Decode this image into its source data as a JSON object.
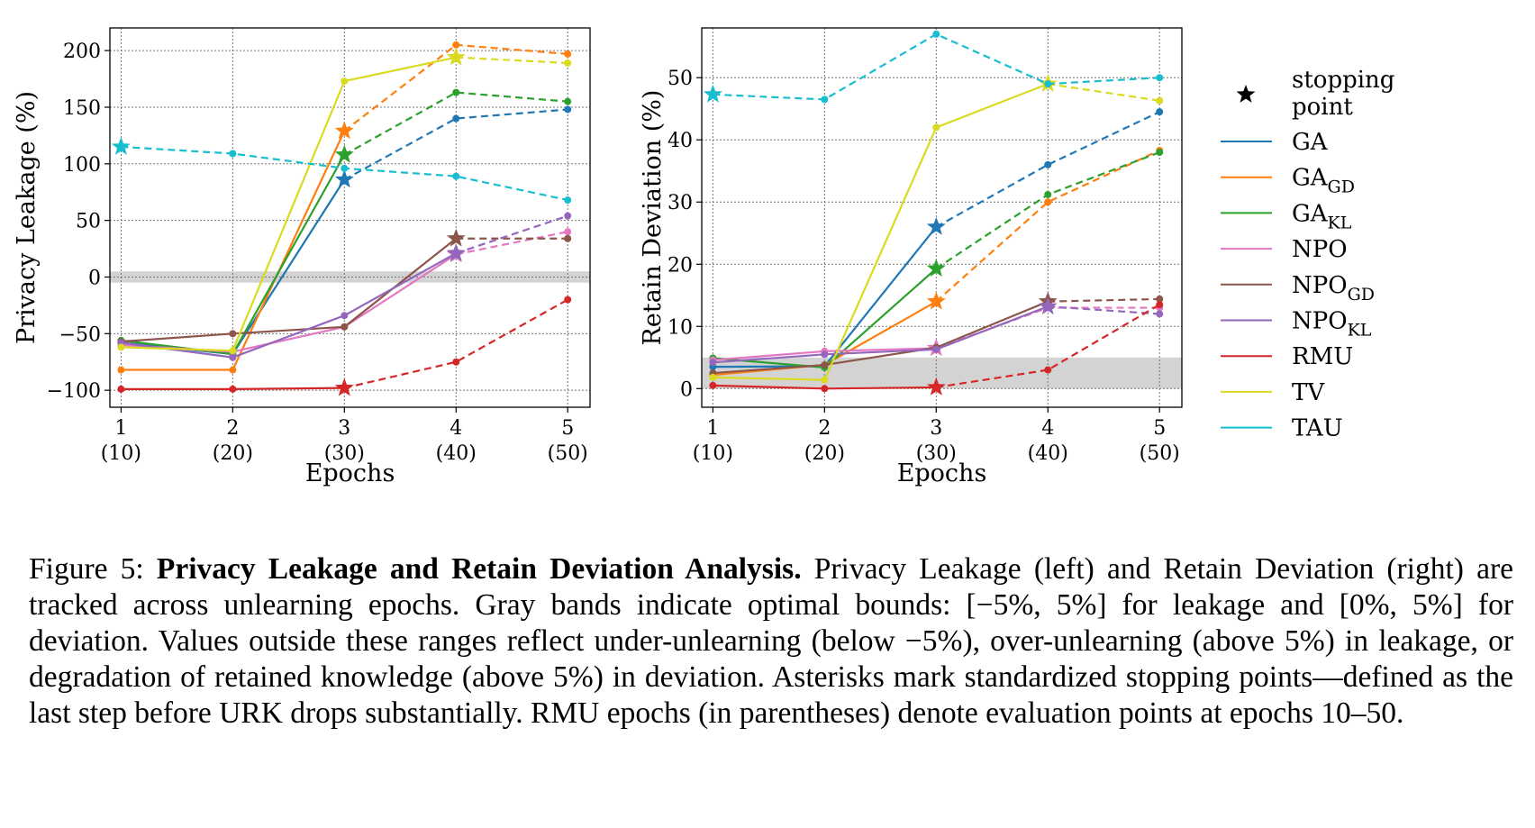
{
  "chart_data": [
    {
      "type": "line",
      "ylabel": "Privacy Leakage (%)",
      "xlabel": "Epochs",
      "x": [
        1,
        2,
        3,
        4,
        5
      ],
      "x_tick_labels": [
        "1",
        "2",
        "3",
        "4",
        "5"
      ],
      "x_tick_sublabels": [
        "(10)",
        "(20)",
        "(30)",
        "(40)",
        "(50)"
      ],
      "xlim": [
        0.9,
        5.2
      ],
      "ylim": [
        -115,
        220
      ],
      "y_ticks": [
        -100,
        -50,
        0,
        50,
        100,
        150,
        200
      ],
      "y_tick_labels": [
        "−100",
        "−50",
        "0",
        "50",
        "100",
        "150",
        "200"
      ],
      "band": [
        -5,
        5
      ],
      "grid": true,
      "series": [
        {
          "name": "GA",
          "color": "#1f77b4",
          "values": [
            -58,
            -68,
            86,
            140,
            148
          ],
          "stop": 3
        },
        {
          "name": "GA_GD",
          "color": "#ff7f0e",
          "values": [
            -82,
            -82,
            129,
            205,
            197
          ],
          "stop": 3
        },
        {
          "name": "GA_KL",
          "color": "#2ca02c",
          "values": [
            -56,
            -68,
            108,
            163,
            155
          ],
          "stop": 3
        },
        {
          "name": "NPO",
          "color": "#e377c2",
          "values": [
            -60,
            -66,
            -44,
            20,
            40
          ],
          "stop": 4
        },
        {
          "name": "NPO_GD",
          "color": "#8c564b",
          "values": [
            -57,
            -50,
            -44,
            34,
            34
          ],
          "stop": 4
        },
        {
          "name": "NPO_KL",
          "color": "#9467bd",
          "values": [
            -58,
            -71,
            -34,
            21,
            54
          ],
          "stop": 4
        },
        {
          "name": "RMU",
          "color": "#d62728",
          "values": [
            -99,
            -99,
            -98,
            -75,
            -20
          ],
          "stop": 3
        },
        {
          "name": "TV",
          "color": "#dada20",
          "values": [
            -62,
            -65,
            173,
            194,
            189
          ],
          "stop": 4
        },
        {
          "name": "TAU",
          "color": "#17becf",
          "values": [
            115,
            109,
            96,
            89,
            68
          ],
          "stop": 1
        }
      ]
    },
    {
      "type": "line",
      "ylabel": "Retain Deviation (%)",
      "xlabel": "Epochs",
      "x": [
        1,
        2,
        3,
        4,
        5
      ],
      "x_tick_labels": [
        "1",
        "2",
        "3",
        "4",
        "5"
      ],
      "x_tick_sublabels": [
        "(10)",
        "(20)",
        "(30)",
        "(40)",
        "(50)"
      ],
      "xlim": [
        0.9,
        5.2
      ],
      "ylim": [
        -3,
        58
      ],
      "y_ticks": [
        0,
        10,
        20,
        30,
        40,
        50
      ],
      "y_tick_labels": [
        "0",
        "10",
        "20",
        "30",
        "40",
        "50"
      ],
      "band": [
        0,
        5
      ],
      "grid": true,
      "series": [
        {
          "name": "GA",
          "color": "#1f77b4",
          "values": [
            3.5,
            3.6,
            26,
            36,
            44.5
          ],
          "stop": 3
        },
        {
          "name": "GA_GD",
          "color": "#ff7f0e",
          "values": [
            2.2,
            3.8,
            14,
            30,
            38.3
          ],
          "stop": 3
        },
        {
          "name": "GA_KL",
          "color": "#2ca02c",
          "values": [
            4.9,
            3.4,
            19.3,
            31.2,
            38
          ],
          "stop": 3
        },
        {
          "name": "NPO",
          "color": "#e377c2",
          "values": [
            4.6,
            6,
            6.5,
            13,
            13
          ],
          "stop": 3
        },
        {
          "name": "NPO_GD",
          "color": "#8c564b",
          "values": [
            2.5,
            3.8,
            6.6,
            14,
            14.4
          ],
          "stop": 4
        },
        {
          "name": "NPO_KL",
          "color": "#9467bd",
          "values": [
            4.2,
            5.5,
            6.3,
            13.2,
            12
          ],
          "stop": 4
        },
        {
          "name": "RMU",
          "color": "#d62728",
          "values": [
            0.5,
            0,
            0.2,
            3,
            13.5
          ],
          "stop": 3
        },
        {
          "name": "TV",
          "color": "#dada20",
          "values": [
            1.8,
            1.4,
            42,
            49,
            46.3
          ],
          "stop": 4
        },
        {
          "name": "TAU",
          "color": "#17becf",
          "values": [
            47.3,
            46.5,
            57,
            49,
            50
          ],
          "stop": 1
        }
      ]
    }
  ],
  "legend": {
    "stopping_label_line1": "stopping",
    "stopping_label_line2": "point",
    "entries": [
      {
        "name": "GA",
        "base": "GA",
        "sub": "",
        "color": "#1f77b4"
      },
      {
        "name": "GA_GD",
        "base": "GA",
        "sub": "GD",
        "color": "#ff7f0e"
      },
      {
        "name": "GA_KL",
        "base": "GA",
        "sub": "KL",
        "color": "#2ca02c"
      },
      {
        "name": "NPO",
        "base": "NPO",
        "sub": "",
        "color": "#e377c2"
      },
      {
        "name": "NPO_GD",
        "base": "NPO",
        "sub": "GD",
        "color": "#8c564b"
      },
      {
        "name": "NPO_KL",
        "base": "NPO",
        "sub": "KL",
        "color": "#9467bd"
      },
      {
        "name": "RMU",
        "base": "RMU",
        "sub": "",
        "color": "#d62728"
      },
      {
        "name": "TV",
        "base": "TV",
        "sub": "",
        "color": "#dada20"
      },
      {
        "name": "TAU",
        "base": "TAU",
        "sub": "",
        "color": "#17becf"
      }
    ]
  },
  "caption": {
    "prefix": "Figure 5: ",
    "bold": "Privacy Leakage and Retain Deviation Analysis.",
    "body": " Privacy Leakage (left) and Retain Deviation (right) are tracked across unlearning epochs. Gray bands indicate optimal bounds: [−5%, 5%] for leakage and [0%, 5%] for deviation. Values outside these ranges reflect under-unlearning (below −5%), over-unlearning (above 5%) in leakage, or degradation of retained knowledge (above 5%) in deviation. Asterisks mark standardized stopping points—defined as the last step before URK drops substantially. RMU epochs (in parentheses) denote evaluation points at epochs 10–50."
  }
}
